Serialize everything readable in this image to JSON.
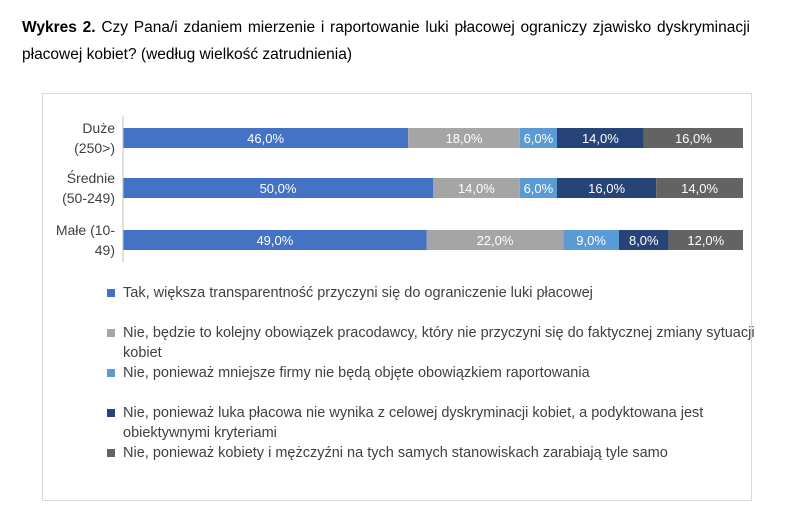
{
  "heading": {
    "prefix": "Wykres 2.",
    "text": "Czy Pana/i zdaniem mierzenie i raportowanie luki płacowej ograniczy zjawisko dyskryminacji płacowej kobiet? (według wielkość zatrudnienia)"
  },
  "chart_data": {
    "type": "bar",
    "orientation": "horizontal",
    "stacked": "percent",
    "categories": [
      [
        "Duże",
        "(250>)"
      ],
      [
        "Średnie",
        "(50-249)"
      ],
      [
        "Małe (10-",
        "49)"
      ]
    ],
    "series": [
      {
        "name": "Tak, większa transparentność przyczyni się do ograniczenie luki płacowej",
        "color": "#4472c4",
        "text_color": "#ffffff",
        "values": [
          46,
          50,
          49
        ],
        "labels": [
          "46,0%",
          "50,0%",
          "49,0%"
        ]
      },
      {
        "name": "Nie, będzie to kolejny obowiązek pracodawcy, który nie przyczyni się do faktycznej zmiany sytuacji kobiet",
        "color": "#a5a5a5",
        "text_color": "#ffffff",
        "values": [
          18,
          14,
          22
        ],
        "labels": [
          "18,0%",
          "14,0%",
          "22,0%"
        ]
      },
      {
        "name": "Nie, ponieważ mniejsze firmy nie będą objęte obowiązkiem raportowania",
        "color": "#5b9bd5",
        "text_color": "#ffffff",
        "values": [
          6,
          6,
          9
        ],
        "labels": [
          "6,0%",
          "6,0%",
          "9,0%"
        ]
      },
      {
        "name": "Nie, ponieważ luka płacowa nie wynika z celowej dyskryminacji kobiet, a podyktowana jest obiektywnymi kryteriami",
        "color": "#264478",
        "text_color": "#ffffff",
        "values": [
          14,
          16,
          8
        ],
        "labels": [
          "14,0%",
          "16,0%",
          "8,0%"
        ]
      },
      {
        "name": "Nie, ponieważ kobiety i mężczyźni na tych samych stanowiskach zarabiają tyle samo",
        "color": "#636363",
        "text_color": "#ffffff",
        "values": [
          16,
          14,
          12
        ],
        "labels": [
          "16,0%",
          "14,0%",
          "12,0%"
        ]
      }
    ],
    "xlim": [
      0,
      100
    ],
    "grid": false,
    "legend_position": "bottom"
  }
}
